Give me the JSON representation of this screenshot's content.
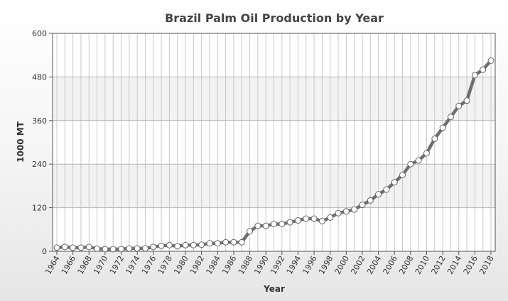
{
  "chart_data": {
    "type": "line",
    "title": "Brazil Palm Oil Production by Year",
    "xlabel": "Year",
    "ylabel": "1000 MT",
    "ylim": [
      0,
      600
    ],
    "yticks": [
      0,
      120,
      240,
      360,
      480,
      600
    ],
    "xlim": [
      1964,
      2018
    ],
    "xticks": [
      1964,
      1966,
      1968,
      1970,
      1972,
      1974,
      1976,
      1978,
      1980,
      1982,
      1984,
      1986,
      1988,
      1990,
      1992,
      1994,
      1996,
      1998,
      2000,
      2002,
      2004,
      2006,
      2008,
      2010,
      2012,
      2014,
      2016,
      2018
    ],
    "grid": true,
    "legend": "none",
    "colors": {
      "line": "#6e6e6e",
      "marker_fill": "#ffffff",
      "marker_stroke": "#666666",
      "band": "#f2f2f2"
    },
    "x": [
      1964,
      1965,
      1966,
      1967,
      1968,
      1969,
      1970,
      1971,
      1972,
      1973,
      1974,
      1975,
      1976,
      1977,
      1978,
      1979,
      1980,
      1981,
      1982,
      1983,
      1984,
      1985,
      1986,
      1987,
      1988,
      1989,
      1990,
      1991,
      1992,
      1993,
      1994,
      1995,
      1996,
      1997,
      1998,
      1999,
      2000,
      2001,
      2002,
      2003,
      2004,
      2005,
      2006,
      2007,
      2008,
      2009,
      2010,
      2011,
      2012,
      2013,
      2014,
      2015,
      2016,
      2017,
      2018
    ],
    "series": [
      {
        "values": [
          10,
          12,
          10,
          10,
          12,
          7,
          6,
          6,
          6,
          8,
          8,
          8,
          12,
          15,
          17,
          14,
          17,
          17,
          18,
          22,
          22,
          25,
          25,
          25,
          55,
          70,
          70,
          75,
          75,
          80,
          85,
          90,
          90,
          83,
          93,
          105,
          110,
          115,
          128,
          140,
          157,
          170,
          190,
          210,
          240,
          250,
          270,
          310,
          340,
          370,
          400,
          415,
          485,
          500,
          525
        ]
      }
    ]
  }
}
